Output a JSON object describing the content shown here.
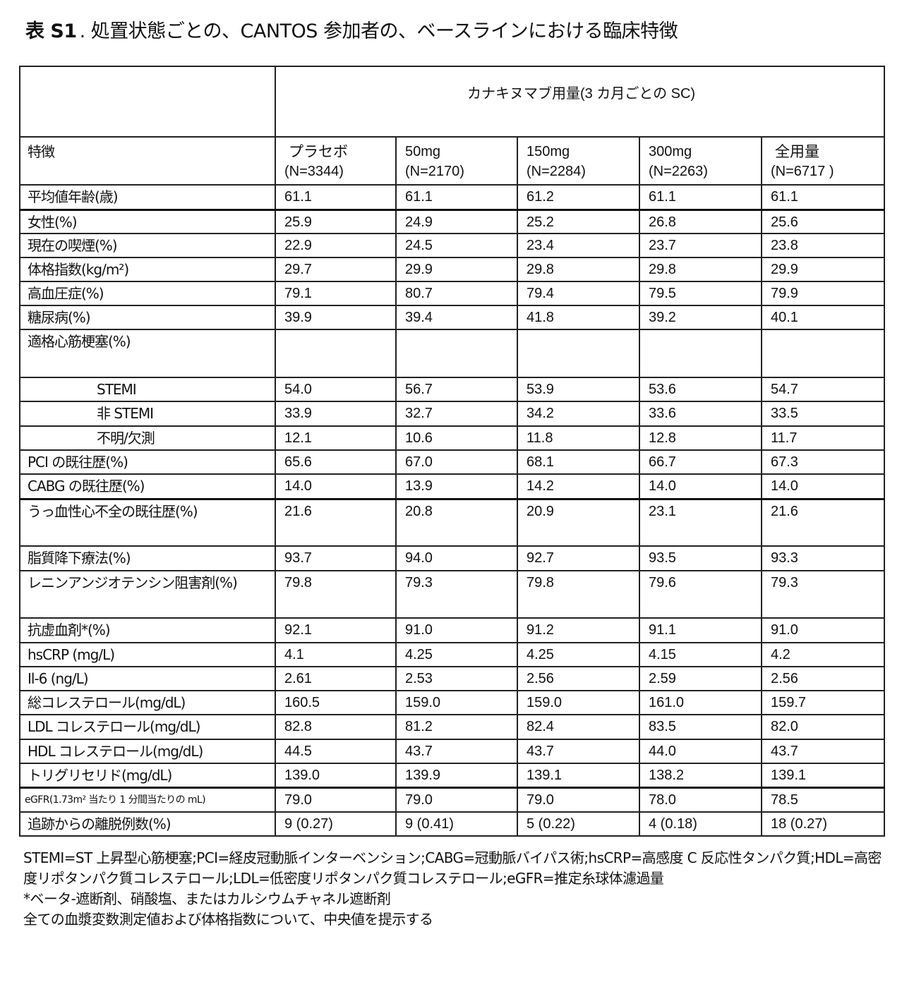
{
  "title": {
    "prefix": "表 S1",
    "text": ". 処置状態ごとの、CANTOS 参加者の、ベースラインにおける臨床特徴"
  },
  "table": {
    "group_header": "カナキヌマブ用量(3 カ月ごとの SC)",
    "first_header": "特徴",
    "columns": [
      {
        "name": "プラセボ",
        "n": "(N=3344)"
      },
      {
        "name": "50mg",
        "n": "(N=2170)"
      },
      {
        "name": "150mg",
        "n": "(N=2284)"
      },
      {
        "name": "300mg",
        "n": "(N=2263)"
      },
      {
        "name": "全用量",
        "n": "(N=6717 )"
      }
    ],
    "rows": [
      {
        "label": "平均値年齢(歳)",
        "values": [
          "61.1",
          "61.1",
          "61.2",
          "61.1",
          "61.1"
        ]
      },
      {
        "label": "女性(%)",
        "values": [
          "25.9",
          "24.9",
          "25.2",
          "26.8",
          "25.6"
        ]
      },
      {
        "label": "現在の喫煙(%)",
        "values": [
          "22.9",
          "24.5",
          "23.4",
          "23.7",
          "23.8"
        ]
      },
      {
        "label": "体格指数(kg/m²)",
        "values": [
          "29.7",
          "29.9",
          "29.8",
          "29.8",
          "29.9"
        ]
      },
      {
        "label": "高血圧症(%)",
        "values": [
          "79.1",
          "80.7",
          "79.4",
          "79.5",
          "79.9"
        ]
      },
      {
        "label": "糖尿病(%)",
        "values": [
          "39.9",
          "39.4",
          "41.8",
          "39.2",
          "40.1"
        ]
      },
      {
        "label": "適格心筋梗塞(%)",
        "values": [
          "",
          "",
          "",
          "",
          ""
        ]
      },
      {
        "label": "STEMI",
        "values": [
          "54.0",
          "56.7",
          "53.9",
          "53.6",
          "54.7"
        ]
      },
      {
        "label": "非 STEMI",
        "values": [
          "33.9",
          "32.7",
          "34.2",
          "33.6",
          "33.5"
        ]
      },
      {
        "label": "不明/欠測",
        "values": [
          "12.1",
          "10.6",
          "11.8",
          "12.8",
          "11.7"
        ]
      },
      {
        "label": "PCI の既往歴(%)",
        "values": [
          "65.6",
          "67.0",
          "68.1",
          "66.7",
          "67.3"
        ]
      },
      {
        "label": "CABG の既往歴(%)",
        "values": [
          "14.0",
          "13.9",
          "14.2",
          "14.0",
          "14.0"
        ]
      },
      {
        "label": "うっ血性心不全の既往歴(%)",
        "values": [
          "21.6",
          "20.8",
          "20.9",
          "23.1",
          "21.6"
        ]
      },
      {
        "label": "脂質降下療法(%)",
        "values": [
          "93.7",
          "94.0",
          "92.7",
          "93.5",
          "93.3"
        ]
      },
      {
        "label": "レニンアンジオテンシン阻害剤(%)",
        "values": [
          "79.8",
          "79.3",
          "79.8",
          "79.6",
          "79.3"
        ]
      },
      {
        "label": "抗虚血剤*(%)",
        "values": [
          "92.1",
          "91.0",
          "91.2",
          "91.1",
          "91.0"
        ]
      },
      {
        "label": "hsCRP (mg/L)",
        "values": [
          "4.1",
          "4.25",
          "4.25",
          "4.15",
          "4.2"
        ]
      },
      {
        "label": "Il-6 (ng/L)",
        "values": [
          "2.61",
          "2.53",
          "2.56",
          "2.59",
          "2.56"
        ]
      },
      {
        "label": "総コレステロール(mg/dL)",
        "values": [
          "160.5",
          "159.0",
          "159.0",
          "161.0",
          "159.7"
        ]
      },
      {
        "label": "LDL コレステロール(mg/dL)",
        "values": [
          "82.8",
          "81.2",
          "82.4",
          "83.5",
          "82.0"
        ]
      },
      {
        "label": "HDL コレステロール(mg/dL)",
        "values": [
          "44.5",
          "43.7",
          "43.7",
          "44.0",
          "43.7"
        ]
      },
      {
        "label": "トリグリセリド(mg/dL)",
        "values": [
          "139.0",
          "139.9",
          "139.1",
          "138.2",
          "139.1"
        ]
      },
      {
        "label": "eGFR(1.73m² 当たり 1 分間当たりの mL)",
        "values": [
          "79.0",
          "79.0",
          "79.0",
          "78.0",
          "78.5"
        ]
      },
      {
        "label": "追跡からの離脱例数(%)",
        "values": [
          "9 (0.27)",
          "9 (0.41)",
          "5 (0.22)",
          "4 (0.18)",
          "18 (0.27)"
        ]
      }
    ]
  },
  "notes": [
    "STEMI=ST 上昇型心筋梗塞;PCI=経皮冠動脈インターベンション;CABG=冠動脈バイパス術;hsCRP=高感度 C 反応性タンパク質;HDL=高密度リポタンパク質コレステロール;LDL=低密度リポタンパク質コレステロール;eGFR=推定糸球体濾過量",
    "*ベータ-遮断剤、硝酸塩、またはカルシウムチャネル遮断剤",
    "全ての血漿変数測定値および体格指数について、中央値を提示する"
  ]
}
